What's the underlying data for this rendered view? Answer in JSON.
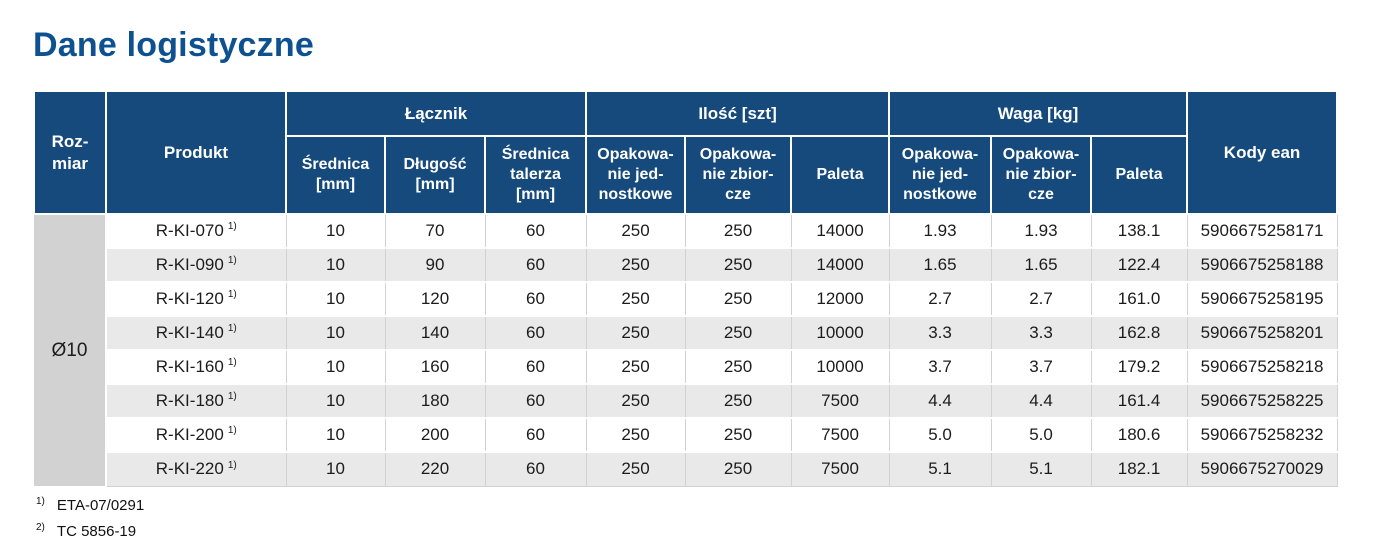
{
  "page": {
    "title": "Dane logistyczne"
  },
  "colors": {
    "header_bg": "#164a7c",
    "title": "#0d5190",
    "row_alt": "#e9e9e9",
    "rozmiar_bg": "#d2d2d2"
  },
  "table": {
    "header": {
      "rozmiar": "Roz-\nmiar",
      "produkt": "Produkt",
      "lacznik": "Łącznik",
      "ilosc": "Ilość [szt]",
      "waga": "Waga [kg]",
      "kody_ean": "Kody ean",
      "srednica": "Średnica\n[mm]",
      "dlugosc": "Długość\n[mm]",
      "srednica_talerza": "Średnica\ntalerza\n[mm]",
      "op_jednostkowe": "Opakowa-\nnie jed-\nnostkowe",
      "op_zbiorcze": "Opakowa-\nnie zbior-\ncze",
      "paleta": "Paleta"
    },
    "rozmiar_value": "Ø10",
    "rows": [
      {
        "produkt": "R-KI-070",
        "fn": "1)",
        "srednica": "10",
        "dlugosc": "70",
        "talerz": "60",
        "op_jedn": "250",
        "op_zbior": "250",
        "paleta": "14000",
        "waga_jedn": "1.93",
        "waga_zbior": "1.93",
        "waga_paleta": "138.1",
        "ean": "5906675258171"
      },
      {
        "produkt": "R-KI-090",
        "fn": "1)",
        "srednica": "10",
        "dlugosc": "90",
        "talerz": "60",
        "op_jedn": "250",
        "op_zbior": "250",
        "paleta": "14000",
        "waga_jedn": "1.65",
        "waga_zbior": "1.65",
        "waga_paleta": "122.4",
        "ean": "5906675258188"
      },
      {
        "produkt": "R-KI-120",
        "fn": "1)",
        "srednica": "10",
        "dlugosc": "120",
        "talerz": "60",
        "op_jedn": "250",
        "op_zbior": "250",
        "paleta": "12000",
        "waga_jedn": "2.7",
        "waga_zbior": "2.7",
        "waga_paleta": "161.0",
        "ean": "5906675258195"
      },
      {
        "produkt": "R-KI-140",
        "fn": "1)",
        "srednica": "10",
        "dlugosc": "140",
        "talerz": "60",
        "op_jedn": "250",
        "op_zbior": "250",
        "paleta": "10000",
        "waga_jedn": "3.3",
        "waga_zbior": "3.3",
        "waga_paleta": "162.8",
        "ean": "5906675258201"
      },
      {
        "produkt": "R-KI-160",
        "fn": "1)",
        "srednica": "10",
        "dlugosc": "160",
        "talerz": "60",
        "op_jedn": "250",
        "op_zbior": "250",
        "paleta": "10000",
        "waga_jedn": "3.7",
        "waga_zbior": "3.7",
        "waga_paleta": "179.2",
        "ean": "5906675258218"
      },
      {
        "produkt": "R-KI-180",
        "fn": "1)",
        "srednica": "10",
        "dlugosc": "180",
        "talerz": "60",
        "op_jedn": "250",
        "op_zbior": "250",
        "paleta": "7500",
        "waga_jedn": "4.4",
        "waga_zbior": "4.4",
        "waga_paleta": "161.4",
        "ean": "5906675258225"
      },
      {
        "produkt": "R-KI-200",
        "fn": "1)",
        "srednica": "10",
        "dlugosc": "200",
        "talerz": "60",
        "op_jedn": "250",
        "op_zbior": "250",
        "paleta": "7500",
        "waga_jedn": "5.0",
        "waga_zbior": "5.0",
        "waga_paleta": "180.6",
        "ean": "5906675258232"
      },
      {
        "produkt": "R-KI-220",
        "fn": "1)",
        "srednica": "10",
        "dlugosc": "220",
        "talerz": "60",
        "op_jedn": "250",
        "op_zbior": "250",
        "paleta": "7500",
        "waga_jedn": "5.1",
        "waga_zbior": "5.1",
        "waga_paleta": "182.1",
        "ean": "5906675270029"
      }
    ]
  },
  "footnotes": [
    {
      "marker": "1)",
      "text": "ETA-07/0291"
    },
    {
      "marker": "2)",
      "text": "TC 5856-19"
    }
  ]
}
